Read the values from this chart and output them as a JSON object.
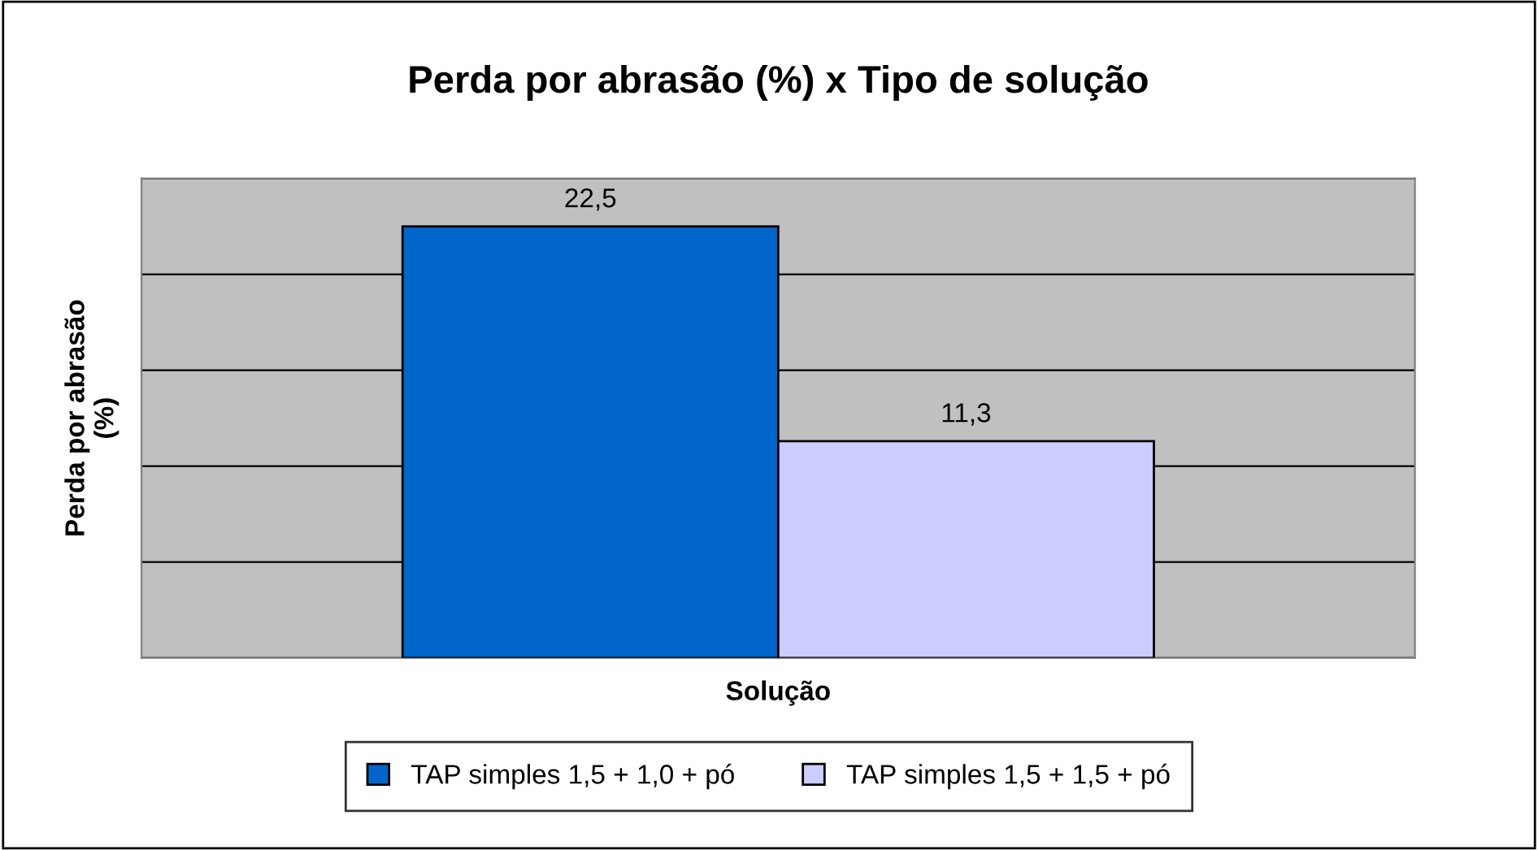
{
  "chart_data": {
    "type": "bar",
    "title": "Perda por abrasão (%) x Tipo de solução",
    "xlabel": "Solução",
    "ylabel": "Perda por abrasão\n(%)",
    "categories": [
      null
    ],
    "series": [
      {
        "name": "TAP simples 1,5 + 1,0 + pó",
        "color": "#0066cc",
        "values": [
          22.5
        ],
        "value_labels": [
          "22,5"
        ]
      },
      {
        "name": "TAP simples 1,5 + 1,5 + pó",
        "color": "#ccccff",
        "values": [
          11.3
        ],
        "value_labels": [
          "11,3"
        ]
      }
    ],
    "ylim": [
      0,
      25
    ],
    "yticks": [
      {
        "value": 0,
        "label": null
      },
      {
        "value": 5,
        "label": null
      },
      {
        "value": 10,
        "label": null
      },
      {
        "value": 15,
        "label": null
      },
      {
        "value": 20,
        "label": null
      },
      {
        "value": 25,
        "label": null
      }
    ],
    "tick_labels": false,
    "grid": "y",
    "legend": "bottom"
  }
}
